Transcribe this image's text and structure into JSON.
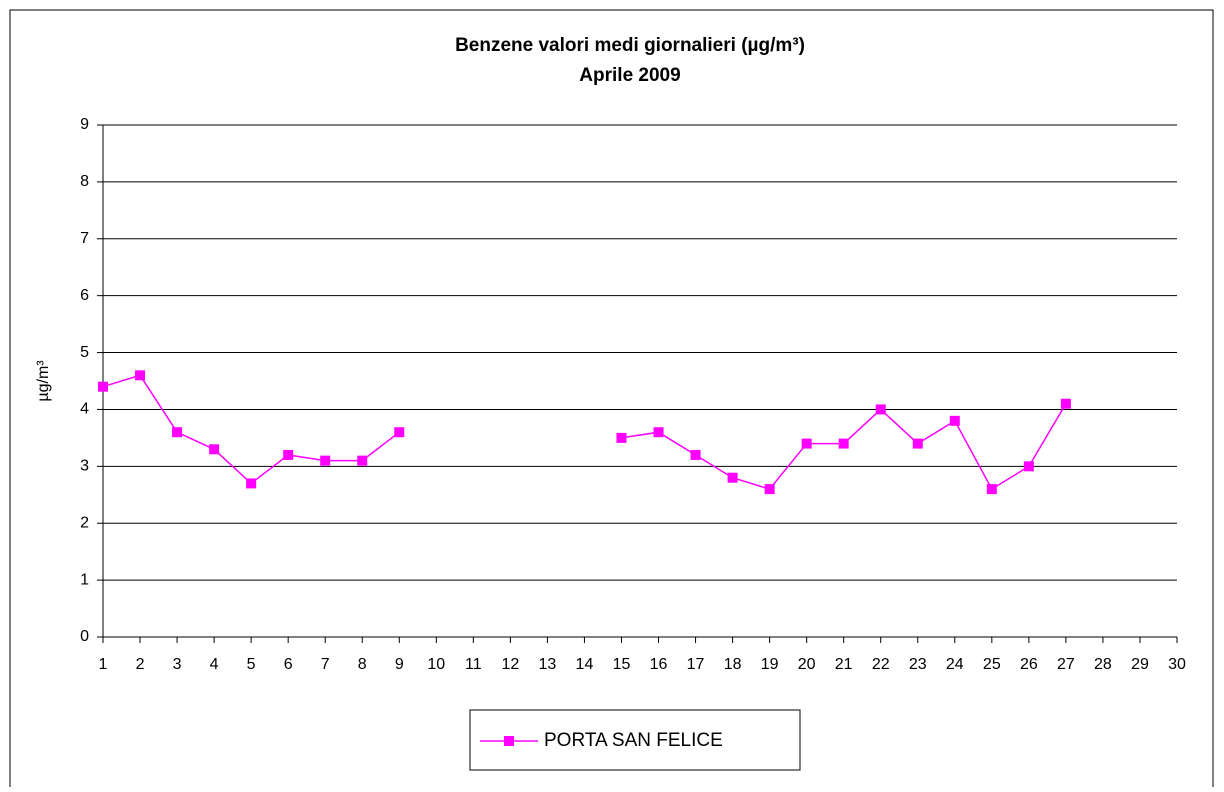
{
  "chart_data": {
    "type": "line",
    "title": "Benzene valori medi giornalieri (µg/m³)",
    "subtitle": "Aprile 2009",
    "y_label": "µg/m³",
    "categories": [
      "1",
      "2",
      "3",
      "4",
      "5",
      "6",
      "7",
      "8",
      "9",
      "10",
      "11",
      "12",
      "13",
      "14",
      "15",
      "16",
      "17",
      "18",
      "19",
      "20",
      "21",
      "22",
      "23",
      "24",
      "25",
      "26",
      "27",
      "28",
      "29",
      "30"
    ],
    "series": [
      {
        "name": "PORTA SAN FELICE",
        "color": "#ff00ff",
        "values": [
          4.4,
          4.6,
          3.6,
          3.3,
          2.7,
          3.2,
          3.1,
          3.1,
          3.6,
          null,
          null,
          null,
          null,
          null,
          3.5,
          3.6,
          3.2,
          2.8,
          2.6,
          3.4,
          3.4,
          4.0,
          3.4,
          3.8,
          2.6,
          3.0,
          4.1,
          null,
          null,
          null
        ]
      }
    ],
    "ylim": [
      0,
      9
    ],
    "yticks": [
      0,
      1,
      2,
      3,
      4,
      5,
      6,
      7,
      8,
      9
    ],
    "grid": true,
    "legend": "bottom"
  }
}
